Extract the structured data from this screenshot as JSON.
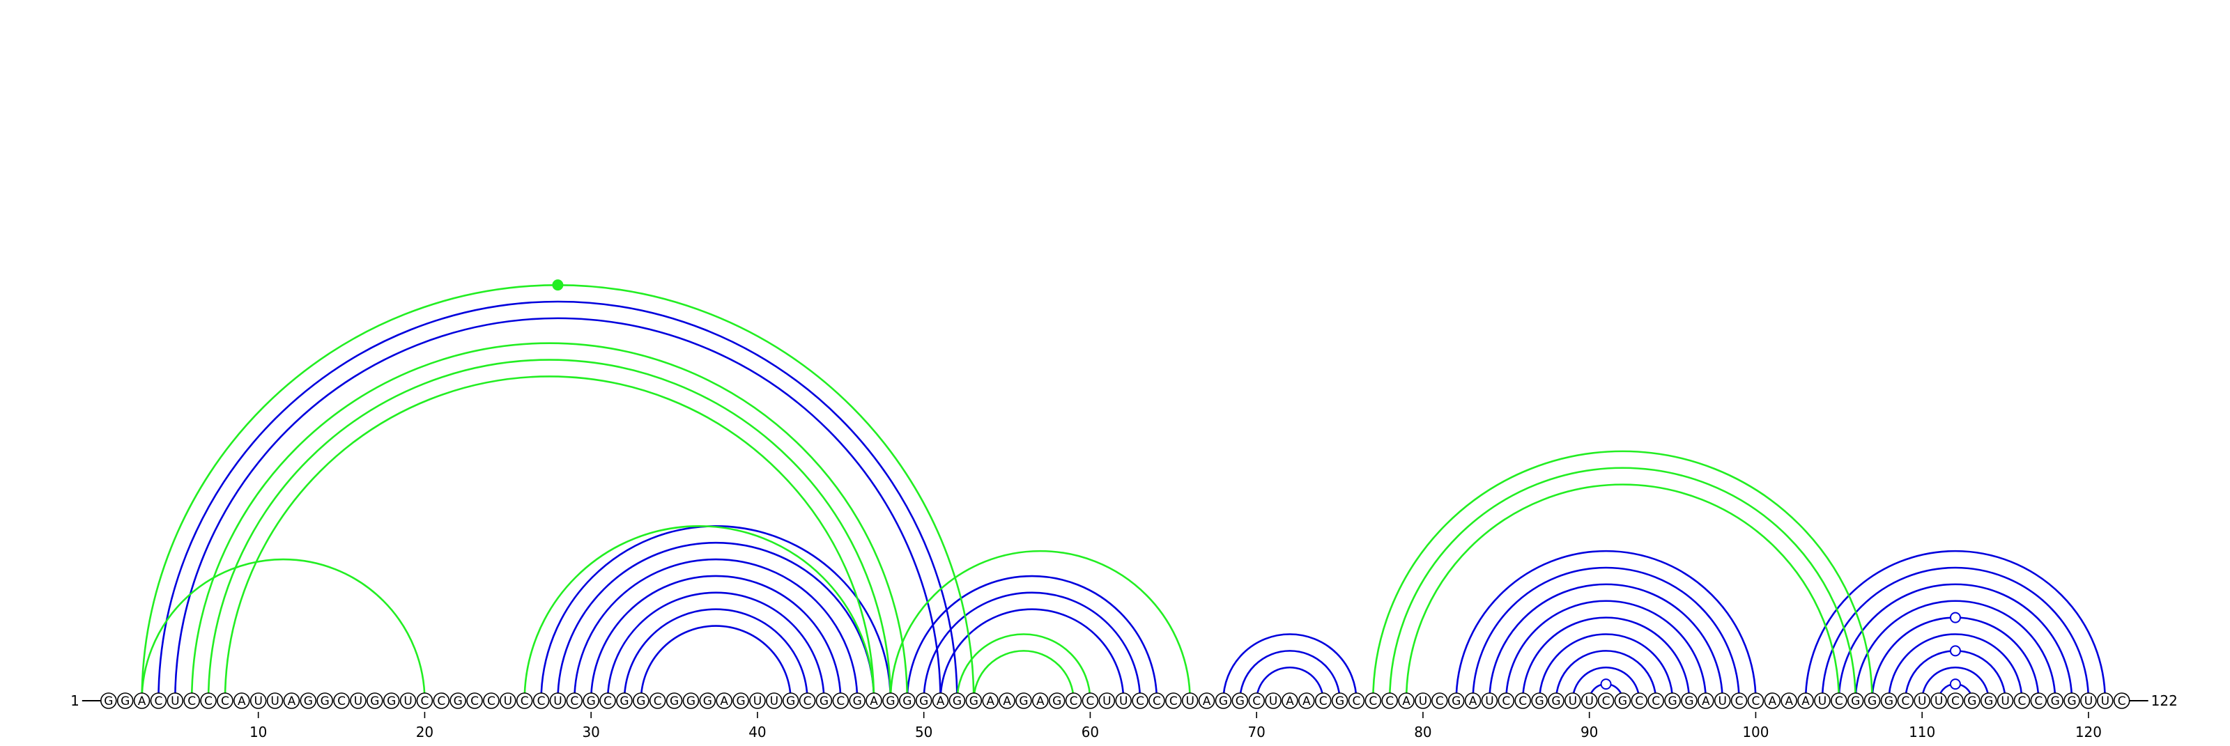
{
  "sequence": "GGACUCCCAUUAGGCUGGUCCGCCUCCUCGCGGCGGGAGUUGCGCGAGGGAGGAAGAGCCUUCCCUAGGCUAACGCCCAUCGAUCCGGUUCGCCGGAUCCAAAUCGGGCUUCGGUCCGGUUC",
  "start_label": "1",
  "end_label": "122",
  "ticks": [
    10,
    20,
    30,
    40,
    50,
    60,
    70,
    80,
    90,
    100,
    110,
    120
  ],
  "colors": {
    "blue": "#0000dd",
    "green": "#22ee22",
    "node": "#ffffff",
    "stroke": "#000000"
  },
  "arc_groups": [
    {
      "color": "blue",
      "pairs": [
        [
          5,
          51
        ],
        [
          4,
          52
        ],
        [
          27,
          48
        ],
        [
          28,
          47
        ],
        [
          29,
          46
        ],
        [
          30,
          45
        ],
        [
          31,
          44
        ],
        [
          32,
          43
        ],
        [
          33,
          42
        ],
        [
          49,
          64
        ],
        [
          50,
          63
        ],
        [
          51,
          62
        ],
        [
          68,
          76
        ],
        [
          69,
          75
        ],
        [
          70,
          74
        ],
        [
          82,
          100
        ],
        [
          83,
          99
        ],
        [
          84,
          98
        ],
        [
          85,
          97
        ],
        [
          86,
          96
        ],
        [
          87,
          95
        ],
        [
          88,
          94
        ],
        [
          89,
          93
        ],
        [
          90,
          92
        ],
        [
          103,
          121
        ],
        [
          104,
          120
        ],
        [
          105,
          119
        ],
        [
          106,
          118
        ],
        [
          107,
          117
        ],
        [
          108,
          116
        ],
        [
          109,
          115
        ],
        [
          110,
          114
        ],
        [
          111,
          113
        ]
      ]
    },
    {
      "color": "green",
      "pairs": [
        [
          3,
          53
        ],
        [
          6,
          49
        ],
        [
          7,
          48
        ],
        [
          8,
          47
        ],
        [
          3,
          20
        ],
        [
          26,
          47
        ],
        [
          48,
          66
        ],
        [
          52,
          60
        ],
        [
          53,
          59
        ],
        [
          77,
          107
        ],
        [
          78,
          106
        ],
        [
          79,
          105
        ]
      ]
    }
  ],
  "markers": [
    {
      "color": "green",
      "pair": [
        3,
        53
      ]
    },
    {
      "color": "blue",
      "pair": [
        90,
        92
      ]
    },
    {
      "color": "blue",
      "pair": [
        111,
        113
      ]
    },
    {
      "color": "blue",
      "pair": [
        109,
        115
      ]
    },
    {
      "color": "blue",
      "pair": [
        107,
        117
      ]
    }
  ]
}
